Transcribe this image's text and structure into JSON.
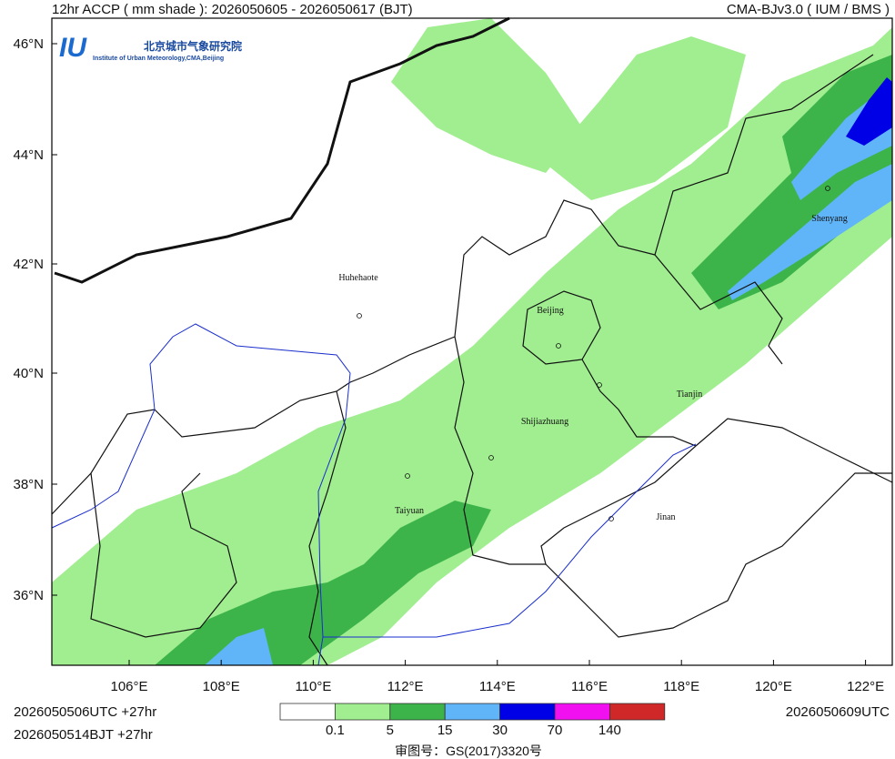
{
  "header": {
    "left": "12hr ACCP ( mm shade ): 2026050605 - 2026050617 (BJT)",
    "right": "CMA-BJv3.0 ( IUM / BMS )"
  },
  "logo": {
    "name": "北京城市气象研究院",
    "subtitle": "Institute of Urban Meteorology,CMA,Beijing"
  },
  "map": {
    "lat_labels": [
      "46°N",
      "44°N",
      "42°N",
      "40°N",
      "38°N",
      "36°N"
    ],
    "lon_labels": [
      "106°E",
      "108°E",
      "110°E",
      "112°E",
      "114°E",
      "116°E",
      "118°E",
      "120°E",
      "122°E"
    ],
    "cities": [
      "Huhehaote",
      "Beijing",
      "Tianjin",
      "Shijiazhuang",
      "Taiyuan",
      "Jinan",
      "Shenyang"
    ]
  },
  "colorbar": {
    "colors": [
      "#ffffff",
      "#a0ee90",
      "#3cb44a",
      "#60b4f8",
      "#0000e6",
      "#f010f0",
      "#d02828"
    ],
    "labels": [
      "0.1",
      "5",
      "15",
      "30",
      "70",
      "140"
    ]
  },
  "footer": {
    "init_utc": "2026050506UTC  +27hr",
    "init_bjt": "2026050514BJT  +27hr",
    "valid": "2026050609UTC",
    "approval": "审图号：GS(2017)3320号"
  }
}
